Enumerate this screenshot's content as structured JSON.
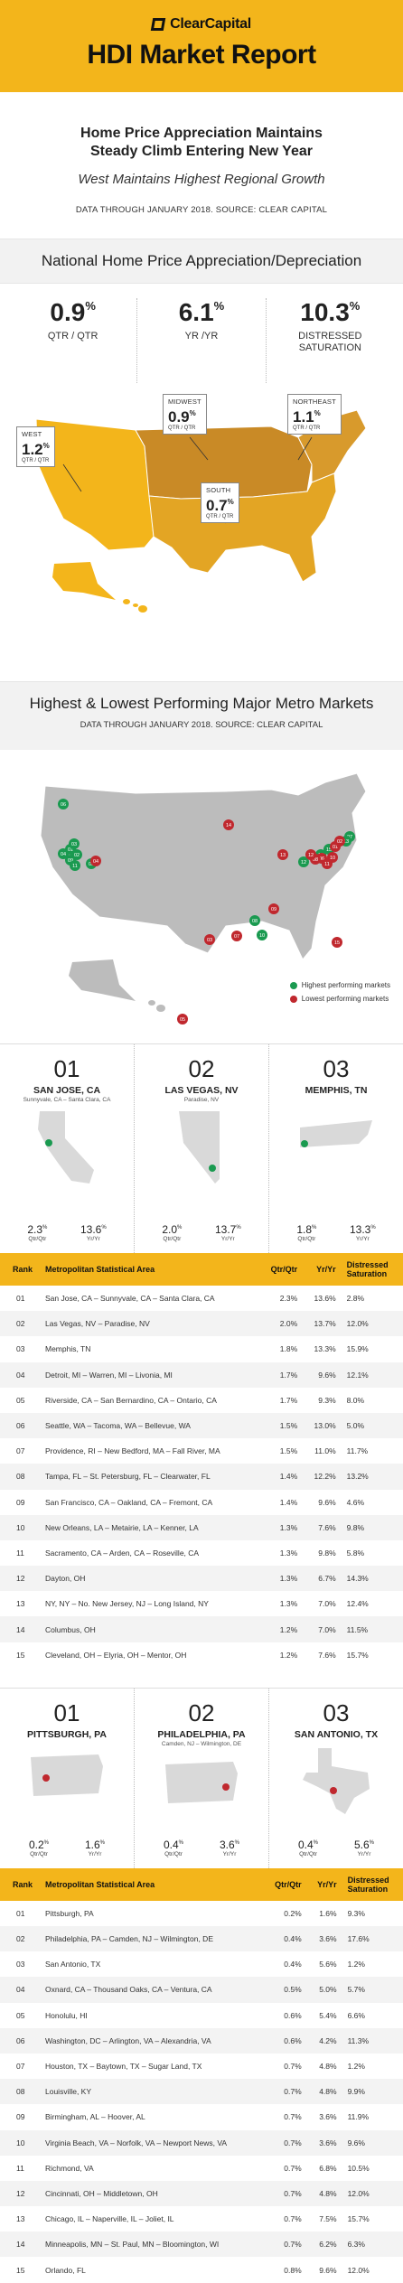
{
  "header": {
    "brand": "ClearCapital",
    "title": "HDI Market Report"
  },
  "intro": {
    "headline_line1": "Home Price Appreciation Maintains",
    "headline_line2": "Steady Climb Entering New Year",
    "subheadline": "West Maintains Highest Regional Growth",
    "source": "DATA THROUGH JANUARY 2018. SOURCE: CLEAR CAPITAL"
  },
  "national": {
    "title": "National Home Price Appreciation/Depreciation",
    "stats": [
      {
        "value": "0.9",
        "unit": "%",
        "label": "QTR / QTR"
      },
      {
        "value": "6.1",
        "unit": "%",
        "label": "YR /YR"
      },
      {
        "value": "10.3",
        "unit": "%",
        "label_line1": "DISTRESSED",
        "label_line2": "SATURATION"
      }
    ],
    "regions": [
      {
        "name": "WEST",
        "value": "1.2",
        "unit": "%",
        "sub": "QTR / QTR"
      },
      {
        "name": "MIDWEST",
        "value": "0.9",
        "unit": "%",
        "sub": "QTR / QTR"
      },
      {
        "name": "NORTHEAST",
        "value": "1.1",
        "unit": "%",
        "sub": "QTR / QTR"
      },
      {
        "name": "SOUTH",
        "value": "0.7",
        "unit": "%",
        "sub": "QTR / QTR"
      }
    ]
  },
  "metro": {
    "title": "Highest & Lowest Performing Major Metro Markets",
    "source": "DATA THROUGH JANUARY 2018. SOURCE: CLEAR CAPITAL",
    "legend_high": "Highest performing markets",
    "legend_low": "Lowest performing markets",
    "map_labels_high": [
      "01",
      "02",
      "03",
      "04",
      "05",
      "06",
      "07",
      "08",
      "09",
      "10",
      "11",
      "12",
      "13",
      "14",
      "15"
    ],
    "map_labels_low": [
      "01",
      "02",
      "03",
      "04",
      "05",
      "06",
      "07",
      "08",
      "09",
      "10",
      "11",
      "12",
      "13",
      "14",
      "15"
    ]
  },
  "top_cards": [
    {
      "rank": "01",
      "city": "SAN JOSE, CA",
      "sub": "Sunnyvale, CA – Santa Clara, CA",
      "qtr": "2.3",
      "yr": "13.6",
      "qtr_label": "Qtr/Qtr",
      "yr_label": "Yr/Yr"
    },
    {
      "rank": "02",
      "city": "LAS VEGAS, NV",
      "sub": "Paradise, NV",
      "qtr": "2.0",
      "yr": "13.7",
      "qtr_label": "Qtr/Qtr",
      "yr_label": "Yr/Yr"
    },
    {
      "rank": "03",
      "city": "MEMPHIS, TN",
      "sub": "",
      "qtr": "1.8",
      "yr": "13.3",
      "qtr_label": "Qtr/Qtr",
      "yr_label": "Yr/Yr"
    }
  ],
  "table_headers": {
    "rank": "Rank",
    "msa": "Metropolitan Statistical Area",
    "qtr": "Qtr/Qtr",
    "yr": "Yr/Yr",
    "dist_line1": "Distressed",
    "dist_line2": "Saturation"
  },
  "top_table": [
    [
      "01",
      "San Jose, CA – Sunnyvale, CA – Santa Clara, CA",
      "2.3%",
      "13.6%",
      "2.8%"
    ],
    [
      "02",
      "Las Vegas, NV – Paradise, NV",
      "2.0%",
      "13.7%",
      "12.0%"
    ],
    [
      "03",
      "Memphis, TN",
      "1.8%",
      "13.3%",
      "15.9%"
    ],
    [
      "04",
      "Detroit, MI – Warren, MI – Livonia, MI",
      "1.7%",
      "9.6%",
      "12.1%"
    ],
    [
      "05",
      "Riverside, CA – San Bernardino, CA – Ontario, CA",
      "1.7%",
      "9.3%",
      "8.0%"
    ],
    [
      "06",
      "Seattle, WA – Tacoma, WA – Bellevue, WA",
      "1.5%",
      "13.0%",
      "5.0%"
    ],
    [
      "07",
      "Providence, RI – New Bedford, MA – Fall River, MA",
      "1.5%",
      "11.0%",
      "11.7%"
    ],
    [
      "08",
      "Tampa, FL – St. Petersburg, FL – Clearwater, FL",
      "1.4%",
      "12.2%",
      "13.2%"
    ],
    [
      "09",
      "San Francisco, CA – Oakland, CA – Fremont, CA",
      "1.4%",
      "9.6%",
      "4.6%"
    ],
    [
      "10",
      "New Orleans, LA – Metairie, LA – Kenner, LA",
      "1.3%",
      "7.6%",
      "9.8%"
    ],
    [
      "11",
      "Sacramento, CA – Arden, CA – Roseville, CA",
      "1.3%",
      "9.8%",
      "5.8%"
    ],
    [
      "12",
      "Dayton, OH",
      "1.3%",
      "6.7%",
      "14.3%"
    ],
    [
      "13",
      "NY, NY – No. New Jersey, NJ – Long Island, NY",
      "1.3%",
      "7.0%",
      "12.4%"
    ],
    [
      "14",
      "Columbus, OH",
      "1.2%",
      "7.0%",
      "11.5%"
    ],
    [
      "15",
      "Cleveland, OH – Elyria, OH – Mentor, OH",
      "1.2%",
      "7.6%",
      "15.7%"
    ]
  ],
  "bottom_cards": [
    {
      "rank": "01",
      "city": "PITTSBURGH, PA",
      "sub": "",
      "qtr": "0.2",
      "yr": "1.6",
      "qtr_label": "Qtr/Qtr",
      "yr_label": "Yr/Yr"
    },
    {
      "rank": "02",
      "city": "PHILADELPHIA, PA",
      "sub": "Camden, NJ – Wilmington, DE",
      "qtr": "0.4",
      "yr": "3.6",
      "qtr_label": "Qtr/Qtr",
      "yr_label": "Yr/Yr"
    },
    {
      "rank": "03",
      "city": "SAN ANTONIO, TX",
      "sub": "",
      "qtr": "0.4",
      "yr": "5.6",
      "qtr_label": "Qtr/Qtr",
      "yr_label": "Yr/Yr"
    }
  ],
  "bottom_table": [
    [
      "01",
      "Pittsburgh, PA",
      "0.2%",
      "1.6%",
      "9.3%"
    ],
    [
      "02",
      "Philadelphia, PA – Camden, NJ – Wilmington, DE",
      "0.4%",
      "3.6%",
      "17.6%"
    ],
    [
      "03",
      "San Antonio, TX",
      "0.4%",
      "5.6%",
      "1.2%"
    ],
    [
      "04",
      "Oxnard, CA – Thousand Oaks, CA – Ventura, CA",
      "0.5%",
      "5.0%",
      "5.7%"
    ],
    [
      "05",
      "Honolulu, HI",
      "0.6%",
      "5.4%",
      "6.6%"
    ],
    [
      "06",
      "Washington, DC – Arlington, VA – Alexandria, VA",
      "0.6%",
      "4.2%",
      "11.3%"
    ],
    [
      "07",
      "Houston, TX – Baytown, TX – Sugar Land, TX",
      "0.7%",
      "4.8%",
      "1.2%"
    ],
    [
      "08",
      "Louisville, KY",
      "0.7%",
      "4.8%",
      "9.9%"
    ],
    [
      "09",
      "Birmingham, AL – Hoover, AL",
      "0.7%",
      "3.6%",
      "11.9%"
    ],
    [
      "10",
      "Virginia Beach, VA – Norfolk, VA – Newport News, VA",
      "0.7%",
      "3.6%",
      "9.6%"
    ],
    [
      "11",
      "Richmond, VA",
      "0.7%",
      "6.8%",
      "10.5%"
    ],
    [
      "12",
      "Cincinnati, OH – Middletown, OH",
      "0.7%",
      "4.8%",
      "12.0%"
    ],
    [
      "13",
      "Chicago, IL – Naperville, IL – Joliet, IL",
      "0.7%",
      "7.5%",
      "15.7%"
    ],
    [
      "14",
      "Minneapolis, MN – St. Paul, MN – Bloomington, WI",
      "0.7%",
      "6.2%",
      "6.3%"
    ],
    [
      "15",
      "Orlando, FL",
      "0.8%",
      "9.6%",
      "12.0%"
    ]
  ],
  "colors": {
    "accent": "#f3b51b",
    "west": "#f3b51b",
    "midwest": "#c98a26",
    "northeast": "#d89a2c",
    "south": "#e3a524",
    "high": "#1a9a50",
    "low": "#c0282e"
  }
}
